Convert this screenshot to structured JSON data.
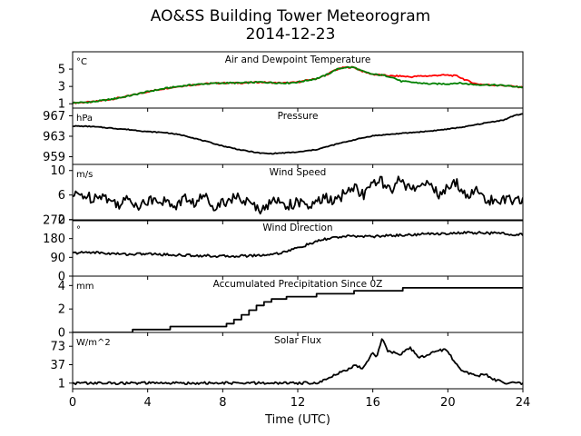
{
  "figure": {
    "title": "AO&SS Building Tower Meteorogram",
    "subtitle": "2014-12-23",
    "xlabel": "Time (UTC)"
  },
  "chart_data": [
    {
      "type": "line",
      "title": "Air and Dewpoint Temperature",
      "unit": "°C",
      "ylim": [
        0.5,
        7.0
      ],
      "yticks": [
        1,
        3,
        5
      ],
      "xlim": [
        0,
        24
      ],
      "xticks": [
        0,
        4,
        8,
        12,
        16,
        20,
        24
      ],
      "colors": [
        "#ff0000",
        "#008000"
      ],
      "series": [
        {
          "color": "#ff0000",
          "x": [
            0,
            1,
            2,
            3,
            4,
            5,
            6,
            7,
            8,
            9,
            10,
            11,
            11.5,
            12,
            13,
            13.5,
            14,
            14.5,
            15,
            15.5,
            16,
            16.5,
            17,
            17.5,
            18,
            18.5,
            19,
            19.5,
            20,
            20.5,
            21,
            21.5,
            22,
            23,
            24
          ],
          "values": [
            1.1,
            1.2,
            1.5,
            1.9,
            2.4,
            2.8,
            3.1,
            3.3,
            3.4,
            3.4,
            3.5,
            3.4,
            3.4,
            3.5,
            3.9,
            4.3,
            4.9,
            5.2,
            5.2,
            4.7,
            4.4,
            4.3,
            4.2,
            4.2,
            4.1,
            4.2,
            4.2,
            4.3,
            4.3,
            4.2,
            3.7,
            3.3,
            3.2,
            3.1,
            2.9
          ]
        },
        {
          "color": "#008000",
          "x": [
            0,
            1,
            2,
            3,
            4,
            5,
            6,
            7,
            8,
            9,
            10,
            11,
            11.5,
            12,
            13,
            13.5,
            14,
            14.5,
            15,
            15.5,
            16,
            16.5,
            17,
            17.5,
            18,
            18.5,
            19,
            19.5,
            20,
            20.5,
            21,
            21.5,
            22,
            23,
            24
          ],
          "values": [
            1.1,
            1.2,
            1.5,
            1.9,
            2.4,
            2.8,
            3.1,
            3.3,
            3.4,
            3.4,
            3.5,
            3.4,
            3.4,
            3.5,
            3.9,
            4.3,
            4.9,
            5.2,
            5.2,
            4.7,
            4.4,
            4.3,
            4.1,
            3.6,
            3.5,
            3.4,
            3.3,
            3.3,
            3.3,
            3.4,
            3.3,
            3.2,
            3.2,
            3.1,
            2.9
          ]
        }
      ]
    },
    {
      "type": "line",
      "title": "Pressure",
      "unit": "hPa",
      "ylim": [
        957.5,
        968.5
      ],
      "yticks": [
        959,
        963,
        967
      ],
      "xlim": [
        0,
        24
      ],
      "colors": [
        "#000000"
      ],
      "series": [
        {
          "color": "#000000",
          "x": [
            0,
            1,
            2,
            3,
            4,
            5,
            6,
            7,
            8,
            9,
            10,
            10.5,
            11,
            12,
            13,
            14,
            15,
            16,
            17,
            18,
            19,
            20,
            21,
            22,
            23,
            23.5,
            24
          ],
          "values": [
            965,
            964.9,
            964.6,
            964.3,
            963.9,
            963.7,
            963.1,
            962.1,
            961.1,
            960.3,
            959.7,
            959.6,
            959.7,
            959.9,
            960.4,
            961.4,
            962.3,
            963.1,
            963.4,
            963.7,
            964,
            964.4,
            964.9,
            965.6,
            966.2,
            967,
            967.4
          ]
        }
      ]
    },
    {
      "type": "line",
      "title": "Wind Speed",
      "unit": "m/s",
      "ylim": [
        1.8,
        11.0
      ],
      "yticks": [
        2,
        6,
        10
      ],
      "xlim": [
        0,
        24
      ],
      "colors": [
        "#000000"
      ],
      "series": [
        {
          "color": "#000000",
          "x": [
            0,
            0.5,
            1,
            1.5,
            2,
            2.5,
            3,
            3.5,
            4,
            4.5,
            5,
            5.5,
            6,
            6.5,
            7,
            7.5,
            8,
            8.5,
            9,
            9.5,
            10,
            10.5,
            11,
            11.5,
            12,
            12.5,
            13,
            13.5,
            14,
            14.5,
            15,
            15.5,
            16,
            16.5,
            17,
            17.5,
            18,
            18.5,
            19,
            19.5,
            20,
            20.5,
            21,
            21.5,
            22,
            22.5,
            23,
            23.5,
            24
          ],
          "values": [
            5.8,
            6.1,
            5.5,
            6.2,
            5.0,
            4.6,
            5.3,
            4.4,
            4.9,
            5.6,
            4.7,
            4.3,
            5.5,
            4.6,
            5.9,
            4.3,
            4.8,
            5.6,
            5.3,
            4.4,
            3.8,
            4.6,
            5.2,
            4.3,
            4.9,
            3.9,
            4.7,
            5.6,
            4.8,
            6.3,
            7.4,
            6.0,
            7.8,
            8.3,
            6.2,
            8.9,
            6.6,
            7.4,
            8.6,
            5.7,
            7.1,
            8.0,
            5.8,
            6.7,
            5.3,
            4.9,
            5.6,
            4.6,
            5.4
          ]
        }
      ]
    },
    {
      "type": "line",
      "title": "Wind Direction",
      "unit": "°",
      "ylim": [
        0,
        270
      ],
      "yticks": [
        0,
        90,
        180,
        270
      ],
      "xlim": [
        0,
        24
      ],
      "colors": [
        "#000000"
      ],
      "series": [
        {
          "color": "#000000",
          "x": [
            0,
            1,
            2,
            3,
            4,
            5,
            6,
            7,
            8,
            9,
            10,
            10.5,
            11,
            11.5,
            12,
            12.5,
            13,
            13.5,
            14,
            15,
            16,
            17,
            18,
            19,
            20,
            21,
            22,
            23,
            24
          ],
          "values": [
            110,
            115,
            108,
            105,
            107,
            103,
            100,
            98,
            95,
            97,
            100,
            104,
            110,
            122,
            135,
            150,
            165,
            178,
            186,
            192,
            190,
            195,
            198,
            203,
            205,
            208,
            207,
            204,
            198
          ]
        }
      ]
    },
    {
      "type": "line",
      "title": "Accumulated Precipitation Since 0Z",
      "unit": "mm",
      "ylim": [
        0,
        4.8
      ],
      "yticks": [
        0,
        2,
        4
      ],
      "xlim": [
        0,
        24
      ],
      "colors": [
        "#000000"
      ],
      "series": [
        {
          "color": "#000000",
          "step": true,
          "x": [
            0,
            3.2,
            5.2,
            8.2,
            8.6,
            9.0,
            9.4,
            9.8,
            10.2,
            10.6,
            11.4,
            13.0,
            15.0,
            17.6,
            24
          ],
          "values": [
            0,
            0.25,
            0.5,
            0.75,
            1.1,
            1.5,
            1.9,
            2.3,
            2.6,
            2.85,
            3.05,
            3.3,
            3.55,
            3.8,
            3.8
          ]
        }
      ]
    },
    {
      "type": "line",
      "title": "Solar Flux",
      "unit": "W/m^2",
      "ylim": [
        -10,
        100
      ],
      "yticks": [
        1,
        37,
        73
      ],
      "xlim": [
        0,
        24
      ],
      "colors": [
        "#000000"
      ],
      "series": [
        {
          "color": "#000000",
          "x": [
            0,
            12,
            13,
            13.5,
            14,
            14.5,
            15,
            15.5,
            16,
            16.2,
            16.5,
            16.8,
            17,
            17.5,
            18,
            18.5,
            19,
            19.5,
            20,
            20.3,
            20.6,
            21,
            21.5,
            22,
            22.5,
            23,
            24
          ],
          "values": [
            1,
            1,
            2,
            8,
            18,
            25,
            35,
            30,
            60,
            52,
            90,
            65,
            62,
            58,
            70,
            50,
            58,
            66,
            65,
            45,
            30,
            22,
            15,
            18,
            8,
            2,
            1
          ]
        }
      ]
    }
  ]
}
